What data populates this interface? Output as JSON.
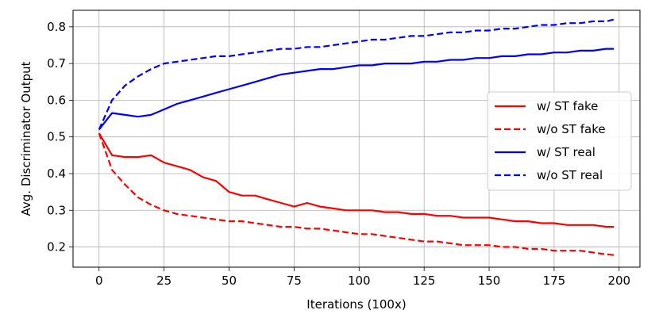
{
  "chart_data": {
    "type": "line",
    "title": "",
    "xlabel": "Iterations (100x)",
    "ylabel": "Avg. Discriminator Output",
    "xlim": [
      -10,
      208
    ],
    "ylim": [
      0.145,
      0.845
    ],
    "xticks": [
      0,
      25,
      50,
      75,
      100,
      125,
      150,
      175,
      200
    ],
    "xtick_labels": [
      "0",
      "25",
      "50",
      "75",
      "100",
      "125",
      "150",
      "175",
      "200"
    ],
    "yticks": [
      0.2,
      0.3,
      0.4,
      0.5,
      0.6,
      0.7,
      0.8
    ],
    "ytick_labels": [
      "0.2",
      "0.3",
      "0.4",
      "0.5",
      "0.6",
      "0.7",
      "0.8"
    ],
    "grid": true,
    "legend_position": "center-right",
    "x": [
      0,
      5,
      10,
      15,
      20,
      25,
      30,
      35,
      40,
      45,
      50,
      55,
      60,
      65,
      70,
      75,
      80,
      85,
      90,
      95,
      100,
      105,
      110,
      115,
      120,
      125,
      130,
      135,
      140,
      145,
      150,
      155,
      160,
      165,
      170,
      175,
      180,
      185,
      190,
      195,
      198
    ],
    "series": [
      {
        "name": "w/ ST fake",
        "color": "#ff0000",
        "style": "solid",
        "values": [
          0.51,
          0.45,
          0.445,
          0.445,
          0.45,
          0.43,
          0.42,
          0.41,
          0.39,
          0.38,
          0.35,
          0.34,
          0.34,
          0.33,
          0.32,
          0.31,
          0.32,
          0.31,
          0.305,
          0.3,
          0.3,
          0.3,
          0.295,
          0.295,
          0.29,
          0.29,
          0.285,
          0.285,
          0.28,
          0.28,
          0.28,
          0.275,
          0.27,
          0.27,
          0.265,
          0.265,
          0.26,
          0.26,
          0.26,
          0.255,
          0.255
        ]
      },
      {
        "name": "w/o ST fake",
        "color": "#ff0000",
        "style": "dashed",
        "values": [
          0.51,
          0.41,
          0.37,
          0.335,
          0.315,
          0.3,
          0.29,
          0.285,
          0.28,
          0.275,
          0.27,
          0.27,
          0.265,
          0.26,
          0.255,
          0.255,
          0.25,
          0.25,
          0.245,
          0.24,
          0.235,
          0.235,
          0.23,
          0.225,
          0.22,
          0.215,
          0.215,
          0.21,
          0.205,
          0.205,
          0.205,
          0.2,
          0.2,
          0.195,
          0.195,
          0.19,
          0.19,
          0.19,
          0.185,
          0.18,
          0.178
        ]
      },
      {
        "name": "w/ ST real",
        "color": "#0000ff",
        "style": "solid",
        "values": [
          0.52,
          0.565,
          0.56,
          0.555,
          0.56,
          0.575,
          0.59,
          0.6,
          0.61,
          0.62,
          0.63,
          0.64,
          0.65,
          0.66,
          0.67,
          0.675,
          0.68,
          0.685,
          0.685,
          0.69,
          0.695,
          0.695,
          0.7,
          0.7,
          0.7,
          0.705,
          0.705,
          0.71,
          0.71,
          0.715,
          0.715,
          0.72,
          0.72,
          0.725,
          0.725,
          0.73,
          0.73,
          0.735,
          0.735,
          0.74,
          0.74
        ]
      },
      {
        "name": "w/o ST real",
        "color": "#0000ff",
        "style": "dashed",
        "values": [
          0.52,
          0.6,
          0.64,
          0.665,
          0.685,
          0.7,
          0.705,
          0.71,
          0.715,
          0.72,
          0.72,
          0.725,
          0.73,
          0.735,
          0.74,
          0.74,
          0.745,
          0.745,
          0.75,
          0.755,
          0.76,
          0.765,
          0.765,
          0.77,
          0.775,
          0.775,
          0.78,
          0.785,
          0.785,
          0.79,
          0.79,
          0.795,
          0.795,
          0.8,
          0.805,
          0.805,
          0.81,
          0.81,
          0.815,
          0.815,
          0.82
        ]
      }
    ]
  }
}
